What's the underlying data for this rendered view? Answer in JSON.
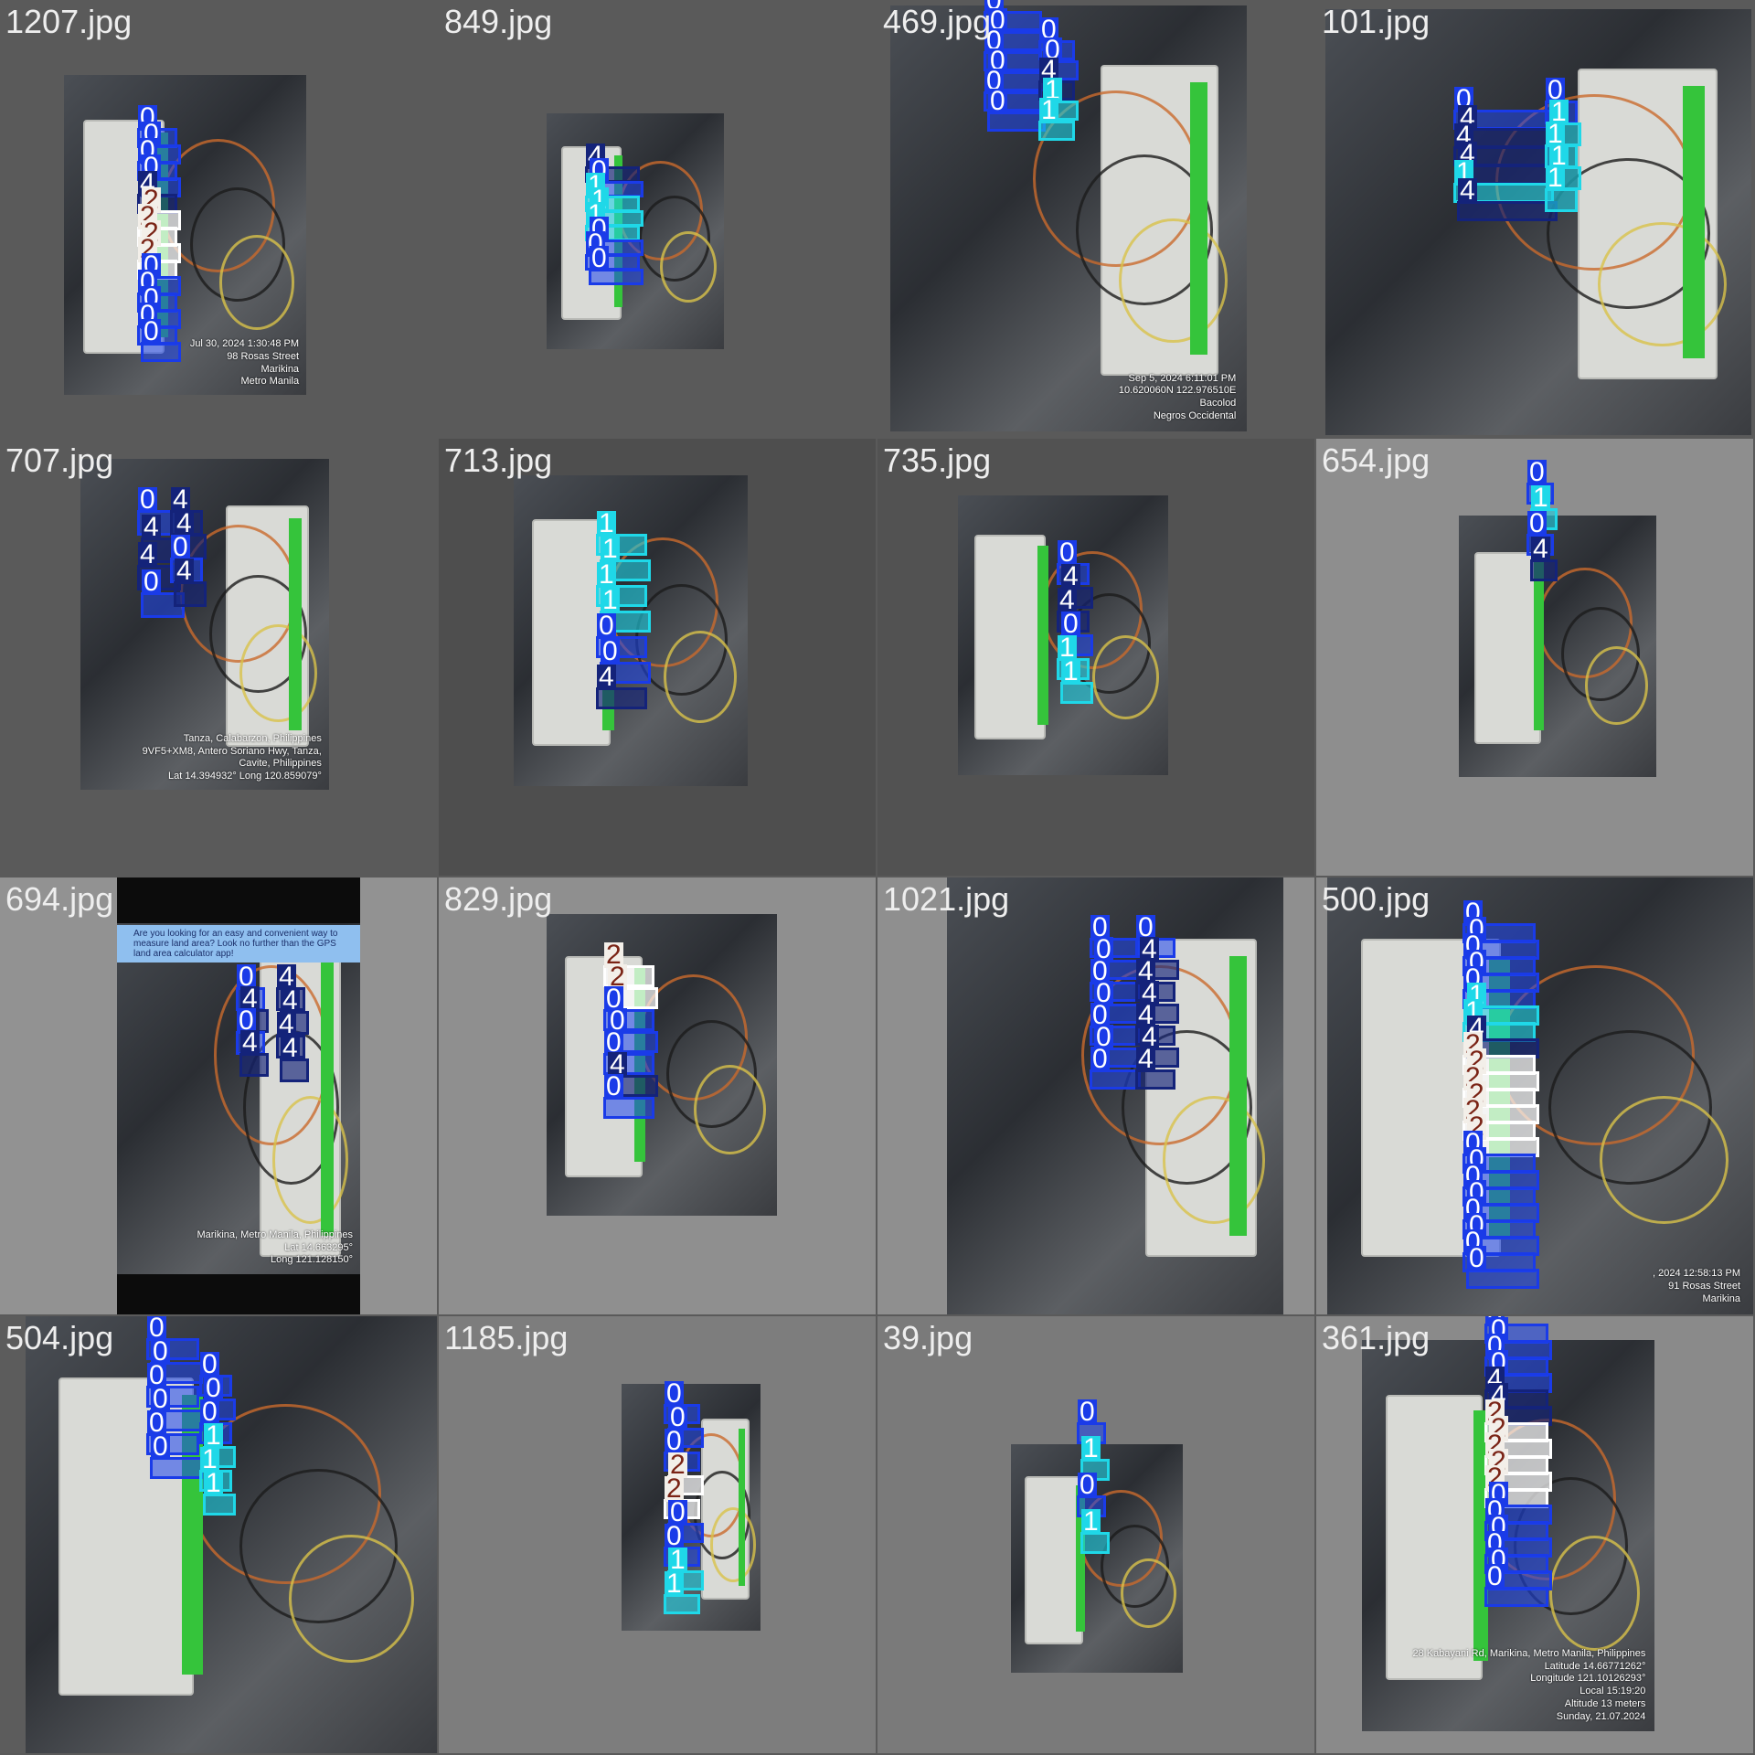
{
  "grid": {
    "tiles": [
      {
        "caption": "1207.jpg",
        "overlay": [
          "Jul 30, 2024 1:30:48 PM",
          "98 Rosas Street",
          "Marikina",
          "Metro Manila"
        ],
        "labels": [
          "0",
          "0",
          "0",
          "0",
          "4",
          "2",
          "2",
          "2",
          "2",
          "0",
          "0",
          "0",
          "0",
          "0"
        ]
      },
      {
        "caption": "849.jpg",
        "overlay": [],
        "labels": [
          "4",
          "0",
          "1",
          "1",
          "1",
          "0",
          "0",
          "0"
        ]
      },
      {
        "caption": "469.jpg",
        "overlay": [
          "Sep 5, 2024 6:11:01 PM",
          "10.620060N 122.976510E",
          "Bacolod",
          "Negros Occidental"
        ],
        "labels": [
          "0",
          "0",
          "0",
          "0",
          "0",
          "0",
          "0",
          "0",
          "4",
          "1",
          "1"
        ]
      },
      {
        "caption": "101.jpg",
        "overlay": [],
        "labels": [
          "0",
          "4",
          "4",
          "4",
          "1",
          "4",
          "0",
          "1",
          "1",
          "1",
          "1"
        ]
      },
      {
        "caption": "707.jpg",
        "overlay": [
          "Tanza, Calabarzon, Philippines",
          "9VF5+XM8, Antero Soriano Hwy, Tanza,",
          "Cavite, Philippines",
          "Lat 14.394932° Long 120.859079°"
        ],
        "labels": [
          "0",
          "4",
          "4",
          "0",
          "4",
          "4",
          "0",
          "4"
        ]
      },
      {
        "caption": "713.jpg",
        "overlay": [],
        "labels": [
          "1",
          "1",
          "1",
          "1",
          "0",
          "0",
          "4"
        ]
      },
      {
        "caption": "735.jpg",
        "overlay": [],
        "labels": [
          "0",
          "4",
          "4",
          "0",
          "1",
          "1"
        ]
      },
      {
        "caption": "654.jpg",
        "overlay": [],
        "labels": [
          "0",
          "1",
          "0",
          "4"
        ]
      },
      {
        "caption": "694.jpg",
        "overlay": [
          "Marikina, Metro Manila, Philippines",
          "Lat 14.663295°",
          "Long 121.128150°"
        ],
        "banner": "Are you looking for an easy and convenient way to measure land area? Look no further than the GPS land area calculator app!",
        "labels": [
          "0",
          "4",
          "0",
          "4",
          "4",
          "4",
          "4",
          "4"
        ]
      },
      {
        "caption": "829.jpg",
        "overlay": [],
        "labels": [
          "2",
          "2",
          "0",
          "0",
          "0",
          "4",
          "0"
        ]
      },
      {
        "caption": "1021.jpg",
        "overlay": [],
        "labels": [
          "0",
          "0",
          "0",
          "0",
          "0",
          "0",
          "0",
          "0",
          "4",
          "4",
          "4",
          "4",
          "4",
          "4"
        ]
      },
      {
        "caption": "500.jpg",
        "overlay": [
          ", 2024 12:58:13 PM",
          "91 Rosas Street",
          "Marikina"
        ],
        "labels": [
          "0",
          "0",
          "0",
          "0",
          "0",
          "1",
          "1",
          "4",
          "2",
          "2",
          "2",
          "2",
          "2",
          "2",
          "0",
          "0",
          "0",
          "0",
          "0",
          "0",
          "0",
          "0"
        ]
      },
      {
        "caption": "504.jpg",
        "overlay": [],
        "labels": [
          "0",
          "0",
          "0",
          "0",
          "0",
          "0",
          "0",
          "0",
          "0",
          "1",
          "1",
          "1"
        ]
      },
      {
        "caption": "1185.jpg",
        "overlay": [],
        "labels": [
          "0",
          "0",
          "0",
          "2",
          "2",
          "0",
          "0",
          "1",
          "1"
        ]
      },
      {
        "caption": "39.jpg",
        "overlay": [],
        "labels": [
          "0",
          "1",
          "0",
          "1"
        ]
      },
      {
        "caption": "361.jpg",
        "overlay": [
          "28 Kabayani Rd, Marikina, Metro Manila, Philippines",
          "Latitude 14.66771262°",
          "Longitude 121.10126293°",
          "Local 15:19:20",
          "Altitude 13 meters",
          "Sunday, 21.07.2024"
        ],
        "labels": [
          "0",
          "0",
          "0",
          "0",
          "4",
          "4",
          "2",
          "2",
          "2",
          "2",
          "2",
          "0",
          "0",
          "0",
          "0",
          "0",
          "0"
        ]
      }
    ]
  },
  "colors": {
    "class_0": "#1a3be8",
    "class_1": "#1fd8e8",
    "class_2": "#ffffff",
    "class_4": "#14237a",
    "background": "#5a5a5a"
  }
}
